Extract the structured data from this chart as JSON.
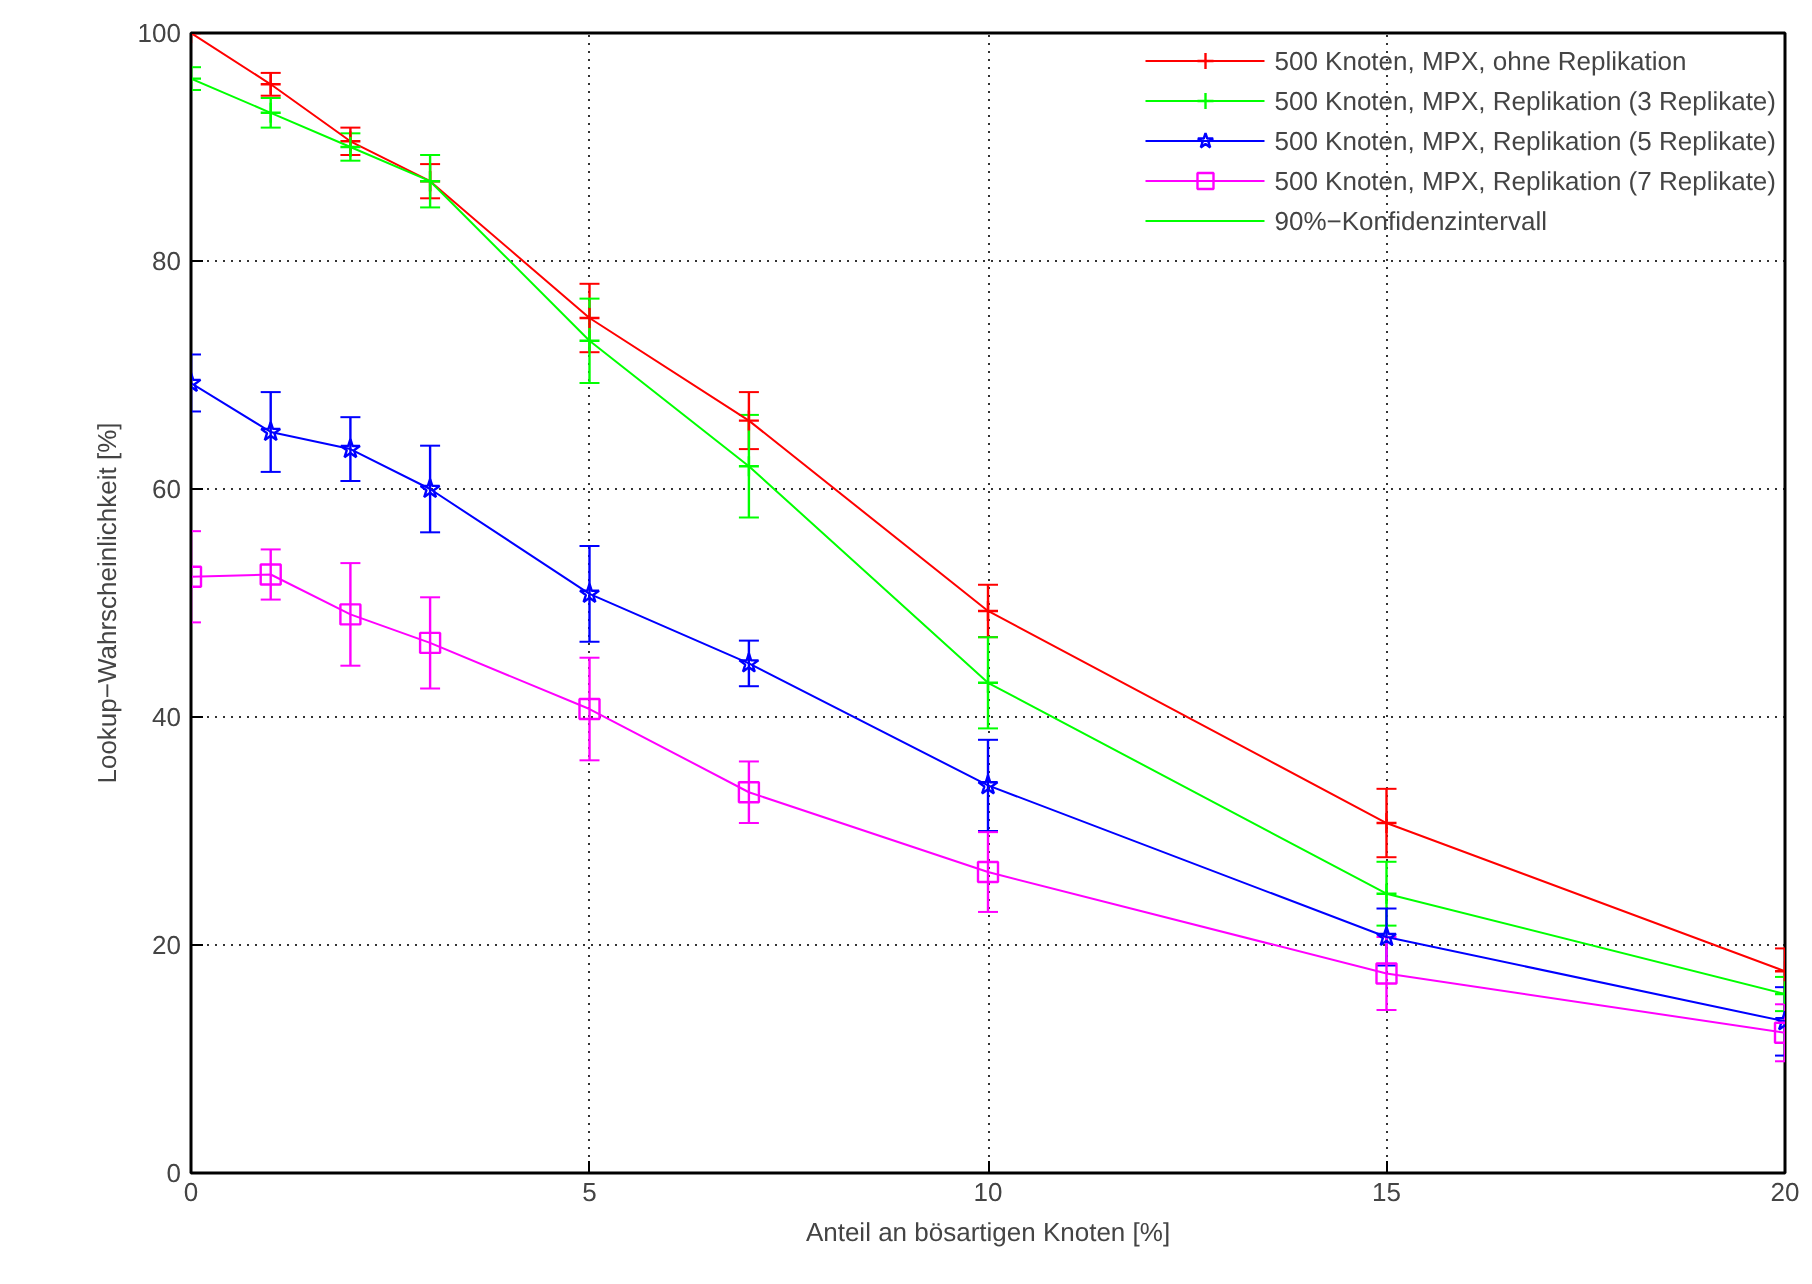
{
  "chart_data": {
    "type": "line",
    "xlabel": "Anteil an bösartigen Knoten [%]",
    "ylabel": "Lookup−Wahrscheinlichkeit [%]",
    "x": [
      0,
      1,
      2,
      3,
      5,
      7,
      10,
      15,
      20
    ],
    "xlim": [
      0,
      20
    ],
    "xticks": [
      0,
      5,
      10,
      15,
      20
    ],
    "ylim": [
      0,
      100
    ],
    "yticks": [
      0,
      20,
      40,
      60,
      80,
      100
    ],
    "grid": true,
    "legend": "top right",
    "line_style": "solid",
    "annotations": [
      "90%−Konfidenzintervall"
    ],
    "series": [
      {
        "name": "500 Knoten, MPX, ohne Replikation",
        "color": "#ff0000",
        "marker": "cross",
        "values": [
          100,
          95.5,
          90.5,
          87,
          75,
          66,
          49.3,
          30.7,
          17.7
        ],
        "errors": [
          null,
          1,
          1.2,
          1.5,
          3,
          2.5,
          2.3,
          3,
          2
        ]
      },
      {
        "name": "500 Knoten, MPX, Replikation (3 Replikate)",
        "color": "#00ff00",
        "marker": "cross",
        "values": [
          96,
          93,
          90,
          87,
          73,
          62,
          43,
          24.5,
          15.7
        ],
        "errors": [
          1,
          1.3,
          1.2,
          2.3,
          3.7,
          4.5,
          4,
          2.8,
          1.5
        ]
      },
      {
        "name": "500 Knoten, MPX, Replikation (5 Replikate)",
        "color": "#0000ff",
        "marker": "star",
        "values": [
          69.3,
          65,
          63.5,
          60,
          50.8,
          44.7,
          34,
          20.7,
          13.3
        ],
        "errors": [
          2.5,
          3.5,
          2.8,
          3.8,
          4.2,
          2,
          4,
          2.5,
          3
        ]
      },
      {
        "name": "500 Knoten, MPX, Replikation (7 Replikate)",
        "color": "#ff00ff",
        "marker": "square",
        "values": [
          52.3,
          52.5,
          49,
          46.5,
          40.7,
          33.4,
          26.4,
          17.5,
          12.3
        ],
        "errors": [
          4,
          2.2,
          4.5,
          4,
          4.5,
          2.7,
          3.5,
          3.2,
          2.5
        ]
      }
    ]
  }
}
